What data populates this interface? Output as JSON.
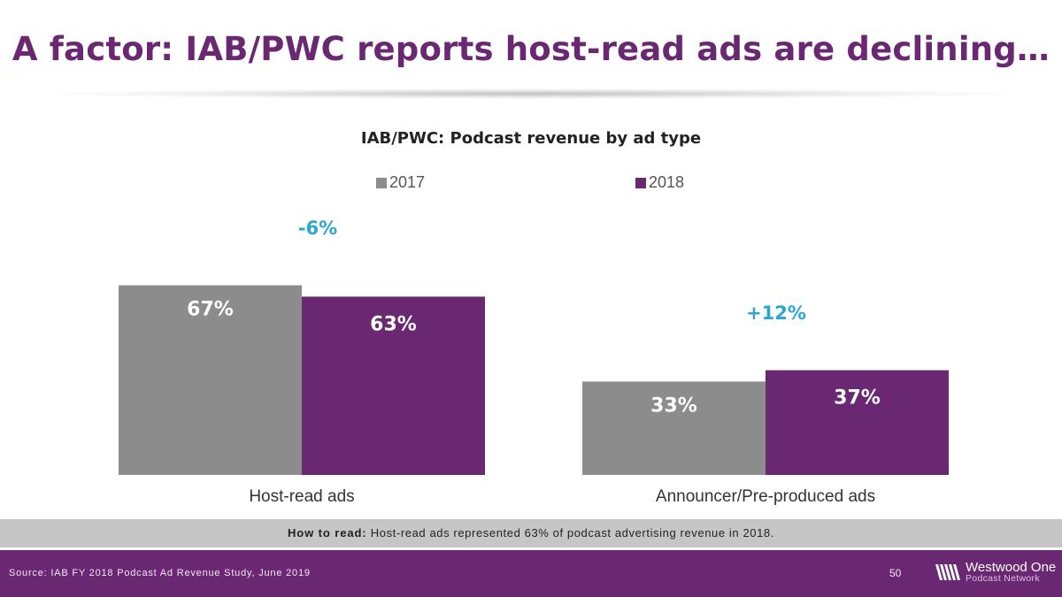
{
  "slide": {
    "title": "A factor: IAB/PWC reports host-read ads are declining…",
    "how_to_read_label": "How to read:",
    "how_to_read_text": " Host-read ads represented 63% of podcast advertising revenue in 2018.",
    "source": "Source: IAB FY 2018 Podcast Ad Revenue Study, June 2019",
    "page_number": "50",
    "logo_name": "Westwood One",
    "logo_sub": "Podcast Network"
  },
  "colors": {
    "title": "#6a2873",
    "series_2017": "#8c8c8c",
    "series_2018": "#6a2873",
    "change_label": "#2aa6d6"
  },
  "chart_data": {
    "type": "bar",
    "title": "IAB/PWC: Podcast revenue by ad type",
    "categories": [
      "Host-read ads",
      "Announcer/Pre-produced ads"
    ],
    "series": [
      {
        "name": "2017",
        "values": [
          67,
          33
        ],
        "labels": [
          "67%",
          "33%"
        ]
      },
      {
        "name": "2018",
        "values": [
          63,
          37
        ],
        "labels": [
          "63%",
          "37%"
        ]
      }
    ],
    "annotations": [
      "-6%",
      "+12%"
    ],
    "ylim": [
      0,
      100
    ],
    "xlabel": "",
    "ylabel": "",
    "legend_position": "top",
    "grid": false
  }
}
